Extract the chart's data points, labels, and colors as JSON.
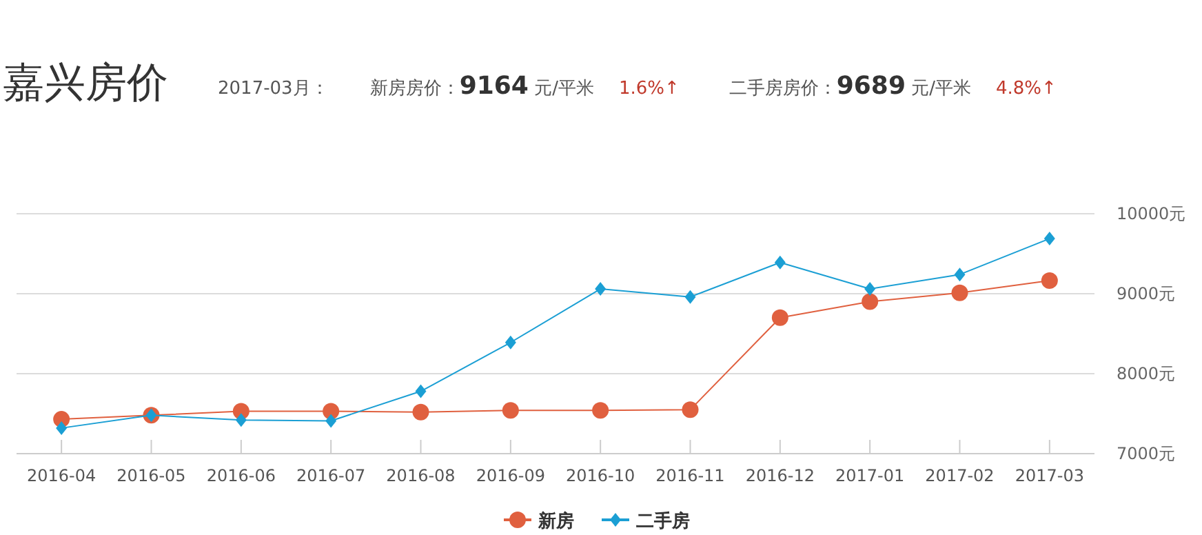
{
  "chart_data": {
    "type": "line",
    "title": "嘉兴房价",
    "subtitle": "2017-03月：",
    "annotations": [
      "新房房价：**9164** 元/平米",
      "1.6%↑",
      "二手房房价：**9689** 元/平米",
      "4.8%↑"
    ],
    "categories": [
      "2016-04",
      "2016-05",
      "2016-06",
      "2016-07",
      "2016-08",
      "2016-09",
      "2016-10",
      "2016-11",
      "2016-12",
      "2017-01",
      "2017-02",
      "2017-03"
    ],
    "series": [
      {
        "name": "新房",
        "color": "#e0603f",
        "marker": "circle",
        "values": [
          7430,
          7480,
          7530,
          7530,
          7520,
          7540,
          7540,
          7550,
          8700,
          8900,
          9010,
          9164
        ]
      },
      {
        "name": "二手房",
        "color": "#1b9fd4",
        "marker": "diamond",
        "values": [
          7320,
          7480,
          7420,
          7410,
          7780,
          8390,
          9060,
          8960,
          9390,
          9060,
          9240,
          9689
        ]
      }
    ],
    "ylim": [
      7000,
      10000
    ],
    "yticks": [
      {
        "value": 7000,
        "label": "7000元"
      },
      {
        "value": 8000,
        "label": "8000元"
      },
      {
        "value": 9000,
        "label": "9000元"
      },
      {
        "value": 10000,
        "label": "10000元"
      }
    ],
    "grid": "y",
    "legend": "bottom"
  }
}
